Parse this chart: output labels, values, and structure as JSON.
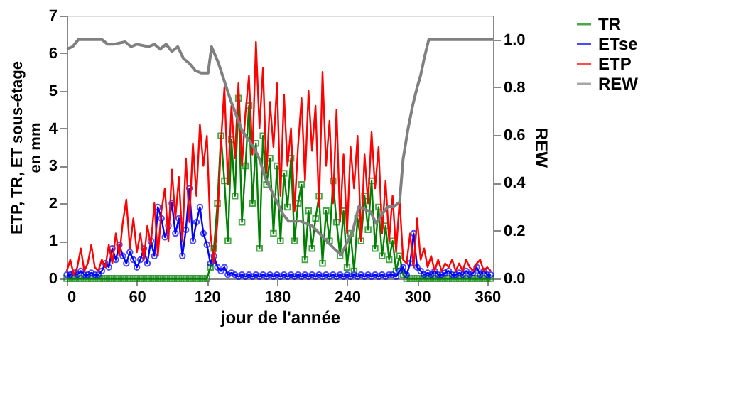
{
  "chart_data": {
    "type": "line",
    "xlabel": "jour de l'année",
    "ylabel": "ETP, TR, ET sous-étage\nen mm",
    "y2label": "REW",
    "xlim": [
      0,
      365
    ],
    "xticks": [
      0,
      60,
      120,
      180,
      240,
      300,
      360
    ],
    "ylim": [
      0,
      7
    ],
    "yticks": [
      0,
      1,
      2,
      3,
      4,
      5,
      6,
      7
    ],
    "y2lim": [
      0,
      1.1
    ],
    "y2ticks": [
      {
        "value": 0,
        "label": "0.0"
      },
      {
        "value": 0.2,
        "label": "0.2"
      },
      {
        "value": 0.4,
        "label": "0.4"
      },
      {
        "value": 0.6,
        "label": "0.6"
      },
      {
        "value": 0.8,
        "label": "0.8"
      },
      {
        "value": 1,
        "label": "1.0"
      }
    ],
    "grid": false,
    "legend": "right",
    "x": [
      0,
      3,
      6,
      9,
      12,
      15,
      18,
      21,
      24,
      27,
      30,
      33,
      36,
      39,
      42,
      45,
      48,
      51,
      54,
      57,
      60,
      63,
      66,
      69,
      72,
      75,
      78,
      81,
      84,
      87,
      90,
      93,
      96,
      99,
      102,
      105,
      108,
      111,
      114,
      117,
      120,
      123,
      126,
      129,
      132,
      135,
      138,
      141,
      144,
      147,
      150,
      153,
      156,
      159,
      162,
      165,
      168,
      171,
      174,
      177,
      180,
      183,
      186,
      189,
      192,
      195,
      198,
      201,
      204,
      207,
      210,
      213,
      216,
      219,
      222,
      225,
      228,
      231,
      234,
      237,
      240,
      243,
      246,
      249,
      252,
      255,
      258,
      261,
      264,
      267,
      270,
      273,
      276,
      279,
      282,
      285,
      288,
      291,
      294,
      297,
      300,
      303,
      306,
      309,
      312,
      315,
      318,
      321,
      324,
      327,
      330,
      333,
      336,
      339,
      342,
      345,
      348,
      351,
      354,
      357,
      360,
      363
    ],
    "series": [
      {
        "name": "TR",
        "color": "#008000",
        "marker": "square",
        "values": [
          0,
          0,
          0,
          0,
          0,
          0,
          0,
          0,
          0,
          0,
          0,
          0,
          0,
          0,
          0,
          0,
          0,
          0,
          0,
          0,
          0,
          0,
          0,
          0,
          0,
          0,
          0,
          0,
          0,
          0,
          0,
          0,
          0,
          0,
          0,
          0,
          0,
          0,
          0,
          0,
          0,
          0.3,
          0.8,
          2.0,
          3.8,
          2.6,
          1.0,
          3.7,
          2.2,
          4.8,
          1.5,
          3.0,
          4.6,
          2.0,
          3.6,
          0.8,
          3.8,
          2.5,
          3.2,
          1.2,
          3.0,
          1.0,
          2.8,
          1.9,
          3.2,
          1.0,
          2.0,
          2.5,
          0.5,
          1.8,
          0.8,
          1.6,
          2.2,
          0.4,
          1.8,
          1.0,
          2.6,
          1.5,
          0.6,
          1.8,
          0.3,
          1.2,
          0.2,
          1.6,
          1.0,
          2.2,
          1.3,
          2.6,
          0.8,
          1.9,
          0.6,
          1.4,
          0.5,
          1.0,
          0.2,
          0.6,
          0.1,
          0,
          0,
          0,
          0,
          0,
          0,
          0,
          0,
          0,
          0,
          0,
          0,
          0,
          0,
          0,
          0,
          0,
          0,
          0,
          0,
          0,
          0,
          0,
          0,
          0
        ]
      },
      {
        "name": "ETse",
        "color": "#0000ff",
        "marker": "circle",
        "values": [
          0.1,
          0.1,
          0.15,
          0.1,
          0.2,
          0.1,
          0.1,
          0.15,
          0.1,
          0.1,
          0.2,
          0.4,
          0.3,
          0.8,
          0.5,
          0.9,
          0.6,
          0.4,
          0.7,
          0.5,
          0.3,
          0.5,
          0.8,
          0.4,
          1.0,
          0.6,
          1.9,
          1.6,
          1.1,
          1.4,
          2.0,
          1.2,
          1.6,
          0.6,
          1.3,
          2.4,
          1.0,
          1.5,
          1.9,
          1.2,
          0.9,
          0.4,
          0.6,
          0.3,
          0.2,
          0.3,
          0.1,
          0.15,
          0.1,
          0.05,
          0.1,
          0.05,
          0.1,
          0.05,
          0.1,
          0.05,
          0.1,
          0.05,
          0.1,
          0.05,
          0.1,
          0.05,
          0.1,
          0.05,
          0.1,
          0.05,
          0.1,
          0.05,
          0.1,
          0.05,
          0.1,
          0.05,
          0.1,
          0.05,
          0.1,
          0.05,
          0.1,
          0.05,
          0.1,
          0.05,
          0.1,
          0.05,
          0.1,
          0.05,
          0.1,
          0.05,
          0.1,
          0.05,
          0.1,
          0.05,
          0.1,
          0.05,
          0.1,
          0.1,
          0.05,
          0.2,
          0.3,
          0.1,
          0.4,
          1.2,
          0.3,
          0.2,
          0.1,
          0.15,
          0.1,
          0.2,
          0.1,
          0.1,
          0.15,
          0.2,
          0.1,
          0.1,
          0.15,
          0.1,
          0.2,
          0.1,
          0.15,
          0.3,
          0.1,
          0.2,
          0.1,
          0.1
        ]
      },
      {
        "name": "ETP",
        "color": "#ff0000",
        "marker": "none",
        "values": [
          0.2,
          0.5,
          0.1,
          0.3,
          0.8,
          0.2,
          0.4,
          0.9,
          0.3,
          0.2,
          0.5,
          0.3,
          0.9,
          0.4,
          1.2,
          0.6,
          1.5,
          2.1,
          0.8,
          1.6,
          0.7,
          1.2,
          0.5,
          1.4,
          0.9,
          2.0,
          0.6,
          1.8,
          2.4,
          1.0,
          2.9,
          1.6,
          2.7,
          1.0,
          3.2,
          1.5,
          3.6,
          2.2,
          4.1,
          3.0,
          3.8,
          1.2,
          0.4,
          1.5,
          3.6,
          5.1,
          2.5,
          4.6,
          3.2,
          5.2,
          3.0,
          4.4,
          5.4,
          3.3,
          6.3,
          4.0,
          5.6,
          2.8,
          4.7,
          3.5,
          5.2,
          2.2,
          4.9,
          3.0,
          4.0,
          1.8,
          3.5,
          4.8,
          2.6,
          5.0,
          3.4,
          4.6,
          1.9,
          5.5,
          3.0,
          4.2,
          2.0,
          4.5,
          1.5,
          3.3,
          1.2,
          3.5,
          2.4,
          3.8,
          1.0,
          3.3,
          2.0,
          3.9,
          2.4,
          3.5,
          1.2,
          2.6,
          1.0,
          2.2,
          0.7,
          2.1,
          0.5,
          0.4,
          1.2,
          0.3,
          1.6,
          0.5,
          0.8,
          0.3,
          0.6,
          0.2,
          0.5,
          0.2,
          0.4,
          0.3,
          0.5,
          0.2,
          0.4,
          0.2,
          0.5,
          0.3,
          0.2,
          0.4,
          0.5,
          0.2,
          0.3,
          0.2
        ]
      },
      {
        "name": "REW",
        "color": "#808080",
        "marker": "none",
        "axis": "y2",
        "x": [
          0,
          5,
          10,
          20,
          30,
          35,
          40,
          50,
          55,
          60,
          70,
          75,
          80,
          85,
          90,
          95,
          100,
          105,
          110,
          115,
          118,
          121,
          124,
          130,
          140,
          150,
          160,
          165,
          170,
          180,
          185,
          190,
          200,
          210,
          220,
          230,
          235,
          240,
          245,
          250,
          260,
          265,
          270,
          275,
          280,
          285,
          288,
          292,
          296,
          300,
          303,
          306,
          310,
          320,
          340,
          365
        ],
        "values": [
          0.96,
          0.97,
          1.0,
          1.0,
          1.0,
          0.98,
          0.98,
          0.99,
          0.97,
          0.98,
          0.97,
          0.98,
          0.96,
          0.98,
          0.95,
          0.97,
          0.92,
          0.9,
          0.87,
          0.86,
          0.86,
          0.86,
          0.97,
          0.9,
          0.75,
          0.62,
          0.55,
          0.5,
          0.42,
          0.32,
          0.27,
          0.24,
          0.24,
          0.22,
          0.17,
          0.12,
          0.1,
          0.15,
          0.2,
          0.3,
          0.28,
          0.23,
          0.27,
          0.3,
          0.3,
          0.32,
          0.5,
          0.62,
          0.72,
          0.8,
          0.85,
          0.92,
          1.0,
          1.0,
          1.0,
          1.0
        ]
      }
    ]
  }
}
